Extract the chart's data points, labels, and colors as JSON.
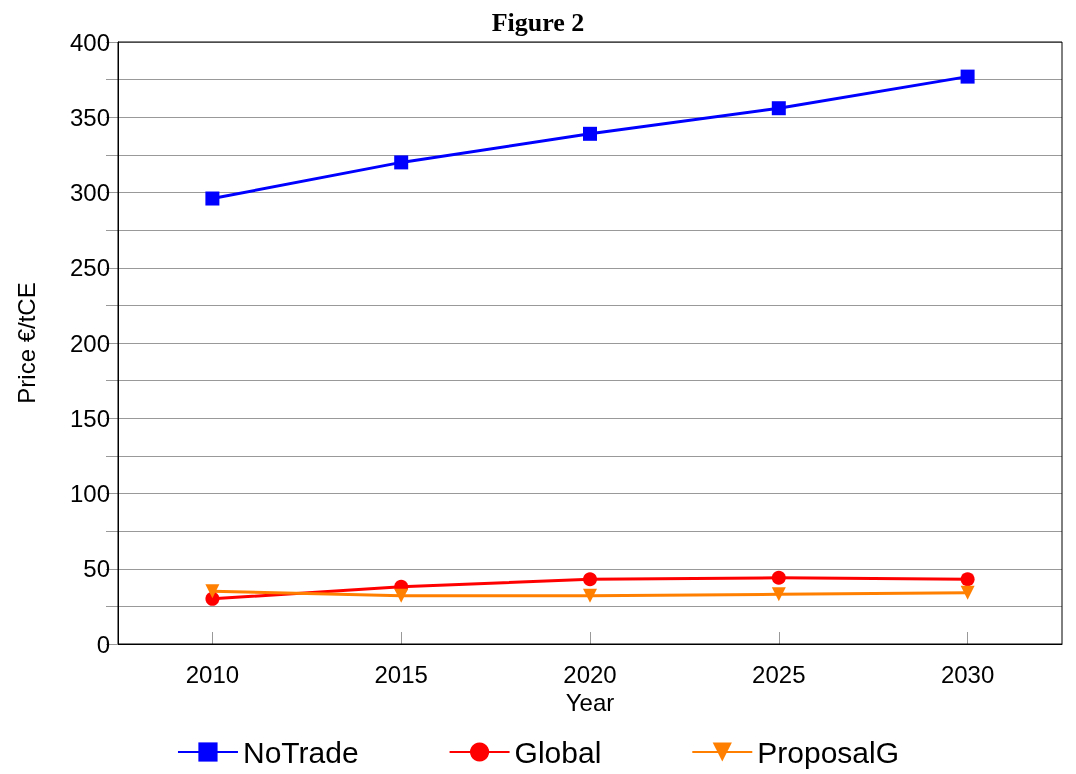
{
  "chart_data": {
    "type": "line",
    "title": "Figure 2",
    "xlabel": "Year",
    "ylabel": "Price €/tCE",
    "categories": [
      "2010",
      "2015",
      "2020",
      "2025",
      "2030"
    ],
    "series": [
      {
        "name": "NoTrade",
        "color": "#0000ff",
        "marker": "square",
        "values": [
          296,
          320,
          339,
          356,
          377
        ]
      },
      {
        "name": "Global",
        "color": "#ff0000",
        "marker": "circle",
        "values": [
          30,
          38,
          43,
          44,
          43
        ]
      },
      {
        "name": "ProposalG",
        "color": "#ff8000",
        "marker": "triangle",
        "values": [
          35,
          32,
          32,
          33,
          34
        ]
      }
    ],
    "ylim": [
      0,
      400
    ],
    "yticks": [
      0,
      {
        "value": 25,
        "label": null
      },
      50,
      {
        "value": 75,
        "label": null
      },
      100,
      {
        "value": 125,
        "label": null
      },
      150,
      {
        "value": 175,
        "label": null
      },
      200,
      {
        "value": 225,
        "label": null
      },
      250,
      {
        "value": 275,
        "label": null
      },
      300,
      {
        "value": 325,
        "label": null
      },
      350,
      {
        "value": 375,
        "label": null
      },
      400
    ],
    "grid": "y",
    "legend": "bottom"
  }
}
